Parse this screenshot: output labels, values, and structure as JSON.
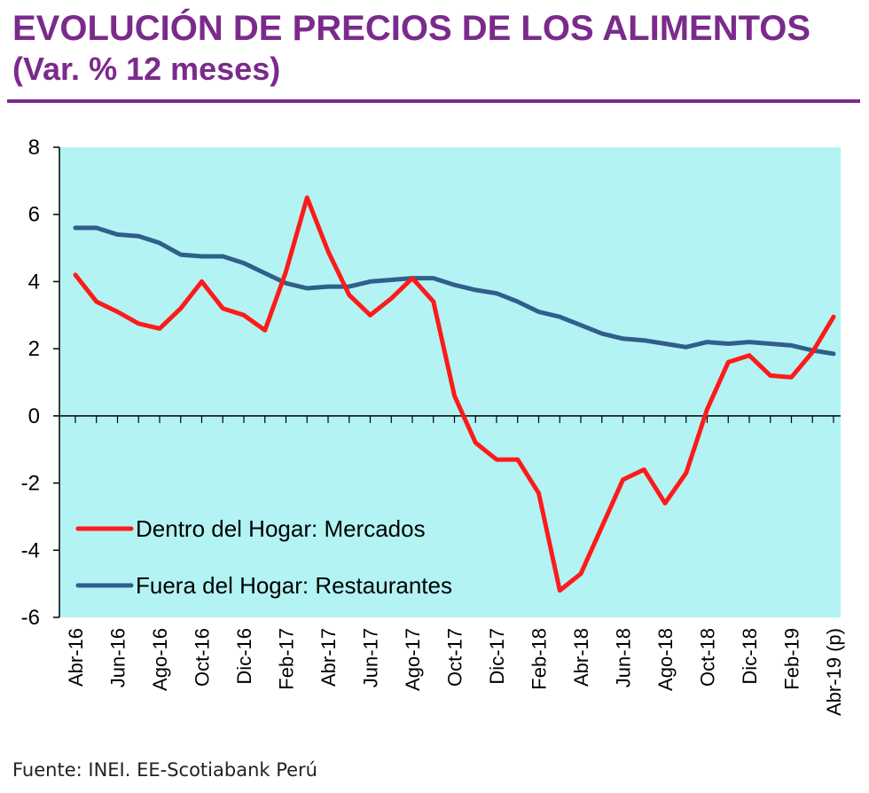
{
  "header": {
    "title": "EVOLUCIÓN DE PRECIOS DE LOS ALIMENTOS",
    "subtitle": "(Var. % 12 meses)"
  },
  "footer": {
    "source": "Fuente: INEI. EE-Scotiabank Perú"
  },
  "colors": {
    "title": "#7b2a8c",
    "plot_background": "#b3f3f3",
    "series_mercados": "#ff1a1a",
    "series_restaurantes": "#2f5f8a"
  },
  "chart_data": {
    "type": "line",
    "title": "EVOLUCIÓN DE PRECIOS DE LOS ALIMENTOS",
    "subtitle": "(Var. % 12 meses)",
    "xlabel": "",
    "ylabel": "",
    "ylim": [
      -6,
      8
    ],
    "yticks": [
      8,
      6,
      4,
      2,
      0,
      -2,
      -4,
      -6
    ],
    "x": [
      "Abr-16",
      "May-16",
      "Jun-16",
      "Jul-16",
      "Ago-16",
      "Sep-16",
      "Oct-16",
      "Nov-16",
      "Dic-16",
      "Ene-17",
      "Feb-17",
      "Mar-17",
      "Abr-17",
      "May-17",
      "Jun-17",
      "Jul-17",
      "Ago-17",
      "Sep-17",
      "Oct-17",
      "Nov-17",
      "Dic-17",
      "Ene-18",
      "Feb-18",
      "Mar-18",
      "Abr-18",
      "May-18",
      "Jun-18",
      "Jul-18",
      "Ago-18",
      "Sep-18",
      "Oct-18",
      "Nov-18",
      "Dic-18",
      "Ene-19",
      "Feb-19",
      "Mar-19",
      "Abr-19 (p)"
    ],
    "xtick_labels": [
      "Abr-16",
      "Jun-16",
      "Ago-16",
      "Oct-16",
      "Dic-16",
      "Feb-17",
      "Abr-17",
      "Jun-17",
      "Ago-17",
      "Oct-17",
      "Dic-17",
      "Feb-18",
      "Abr-18",
      "Jun-18",
      "Ago-18",
      "Oct-18",
      "Dic-18",
      "Feb-19",
      "Abr-19 (p)"
    ],
    "legend_position": "bottom-left",
    "grid": false,
    "series": [
      {
        "name": "Dentro del Hogar: Mercados",
        "color": "#ff1a1a",
        "values": [
          4.2,
          3.4,
          3.1,
          2.75,
          2.6,
          3.2,
          4.0,
          3.2,
          3.0,
          2.55,
          4.3,
          6.5,
          4.9,
          3.6,
          3.0,
          3.5,
          4.1,
          3.4,
          0.6,
          -0.8,
          -1.3,
          -1.3,
          -2.3,
          -5.2,
          -4.7,
          -3.3,
          -1.9,
          -1.6,
          -2.6,
          -1.7,
          0.2,
          1.6,
          1.8,
          1.2,
          1.15,
          1.9,
          2.95
        ]
      },
      {
        "name": "Fuera del Hogar: Restaurantes",
        "color": "#2f5f8a",
        "values": [
          5.6,
          5.6,
          5.4,
          5.35,
          5.15,
          4.8,
          4.75,
          4.75,
          4.55,
          4.25,
          3.95,
          3.8,
          3.85,
          3.85,
          4.0,
          4.05,
          4.1,
          4.1,
          3.9,
          3.75,
          3.65,
          3.4,
          3.1,
          2.95,
          2.7,
          2.45,
          2.3,
          2.25,
          2.15,
          2.05,
          2.2,
          2.15,
          2.2,
          2.15,
          2.1,
          1.95,
          1.85
        ]
      }
    ]
  }
}
